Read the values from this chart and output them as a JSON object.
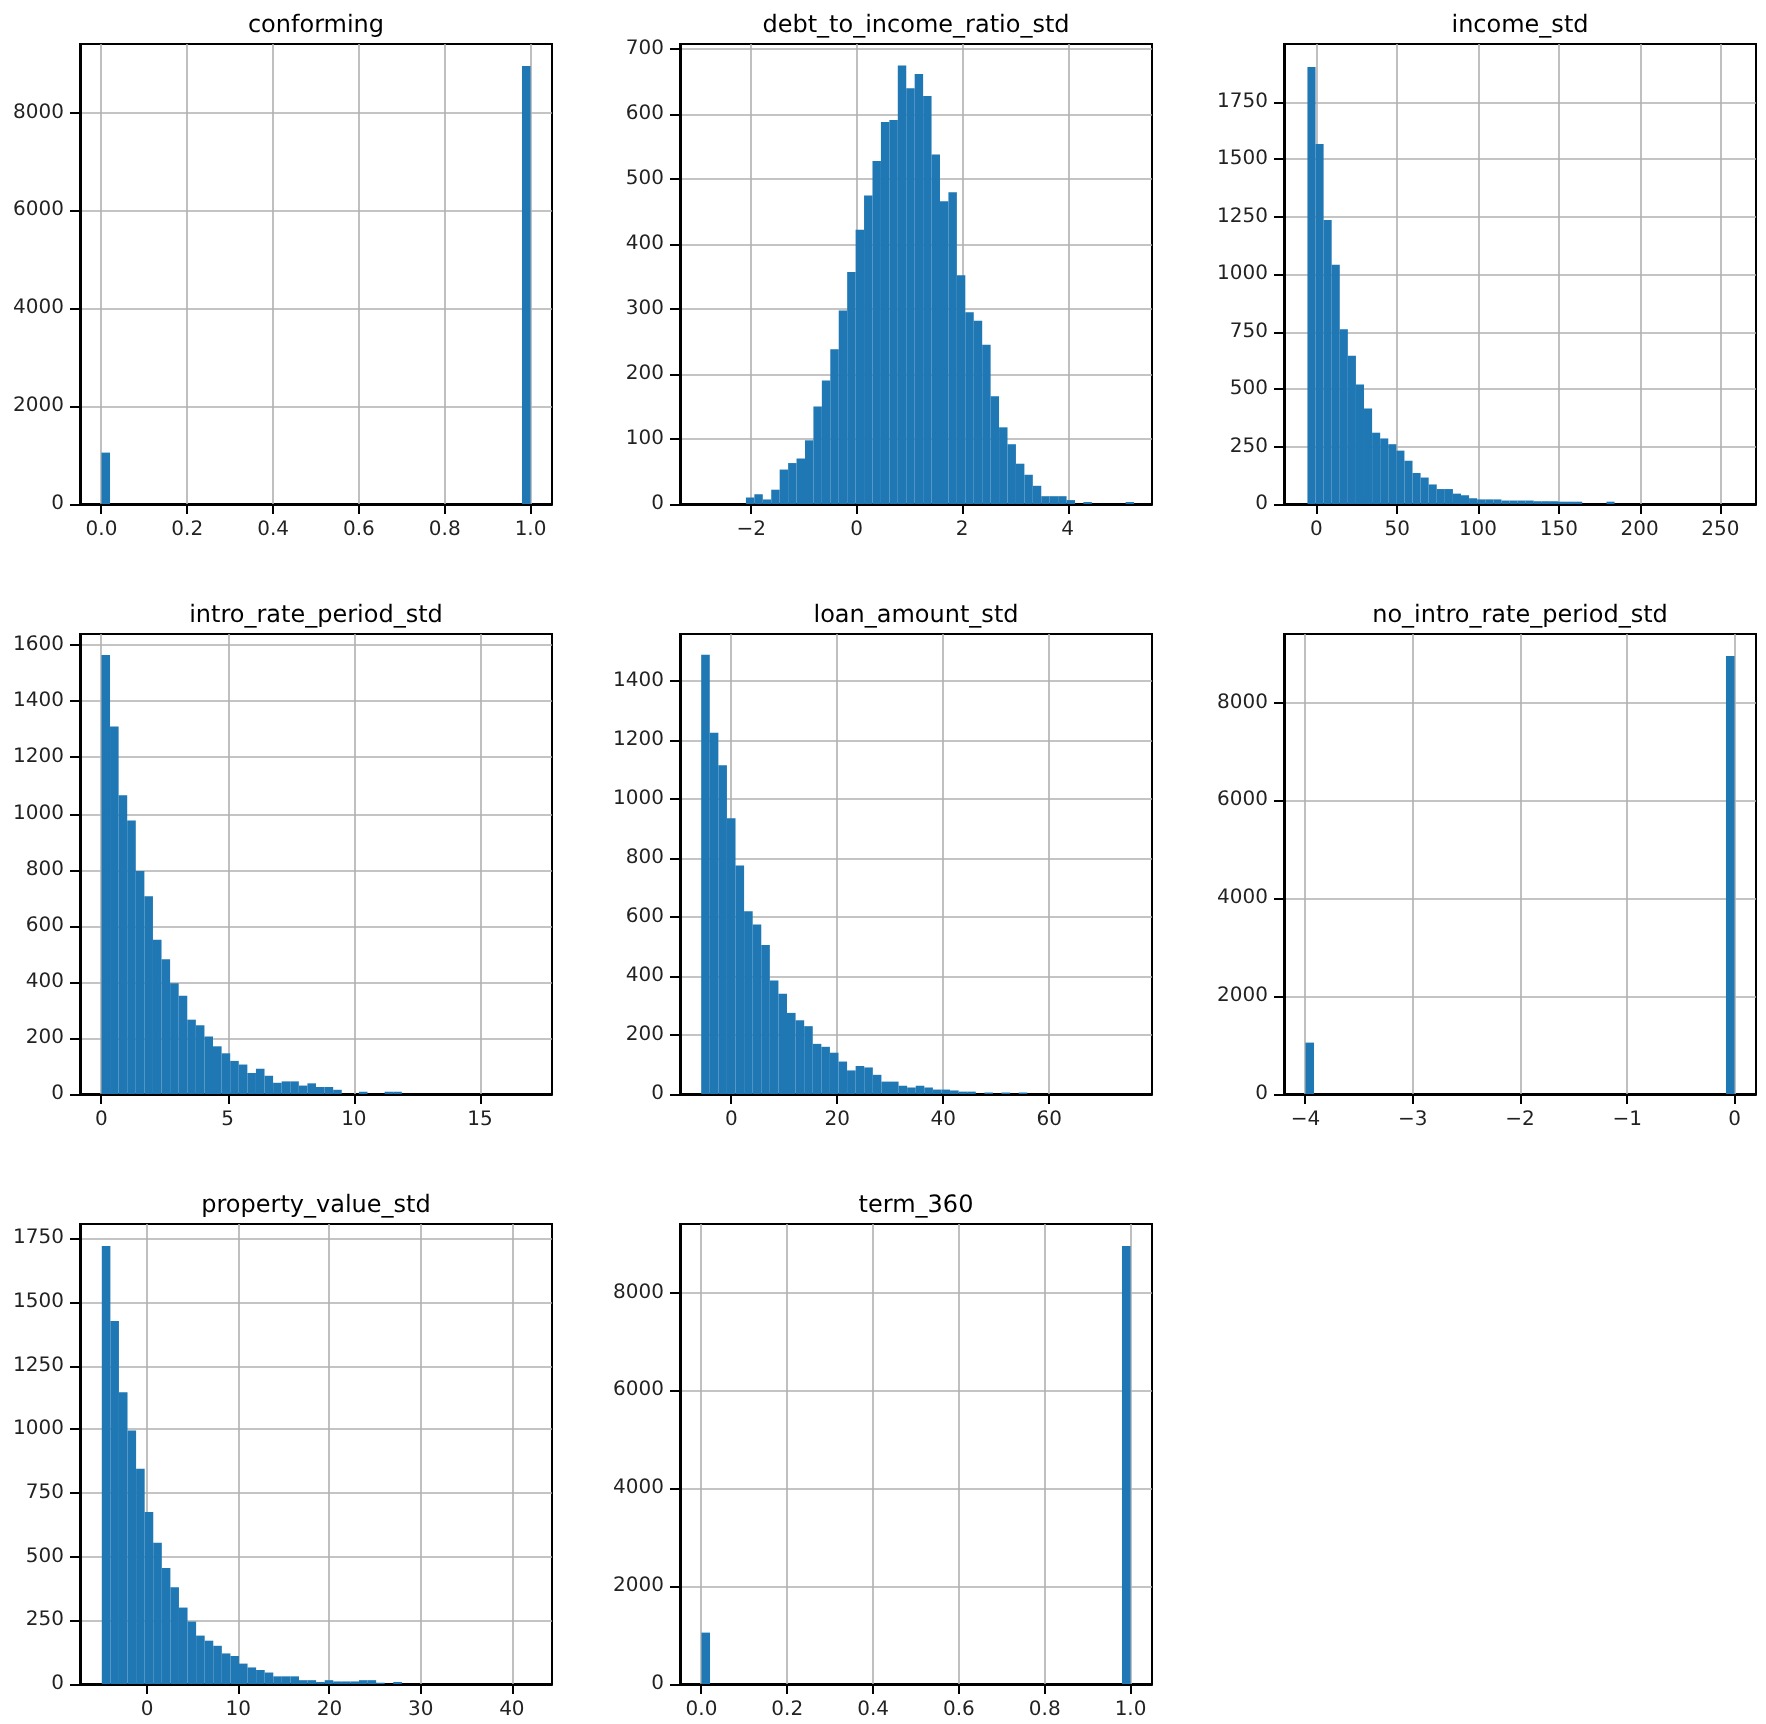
{
  "chart_data": [
    {
      "type": "histogram",
      "title": "conforming",
      "color": "#1f77b4",
      "grid": true,
      "bins": [
        0,
        0.02,
        0.98,
        1.0
      ],
      "values": [
        1050,
        0,
        8950
      ],
      "xlim": [
        -0.05,
        1.05
      ],
      "xticks": [
        {
          "value": 0,
          "label": "0.0"
        },
        {
          "value": 0.2,
          "label": "0.2"
        },
        {
          "value": 0.4,
          "label": "0.4"
        },
        {
          "value": 0.6,
          "label": "0.6"
        },
        {
          "value": 0.8,
          "label": "0.8"
        },
        {
          "value": 1,
          "label": "1.0"
        }
      ],
      "ylim": [
        0,
        9400
      ],
      "yticks": [
        0,
        2000,
        4000,
        6000,
        8000
      ]
    },
    {
      "type": "histogram",
      "title": "debt_to_income_ratio_std",
      "color": "#1f77b4",
      "grid": true,
      "bins": [
        -2.1,
        -1.94,
        -1.78,
        -1.62,
        -1.46,
        -1.3,
        -1.14,
        -0.98,
        -0.82,
        -0.66,
        -0.5,
        -0.34,
        -0.18,
        -0.02,
        0.14,
        0.3,
        0.46,
        0.62,
        0.78,
        0.94,
        1.1,
        1.26,
        1.42,
        1.58,
        1.74,
        1.9,
        2.06,
        2.22,
        2.38,
        2.54,
        2.7,
        2.86,
        3.02,
        3.18,
        3.34,
        3.5,
        3.66,
        3.82,
        3.98,
        4.14,
        4.3,
        4.46,
        4.62,
        4.78,
        4.94,
        5.1,
        5.26
      ],
      "values": [
        10,
        15,
        7,
        22,
        53,
        63,
        70,
        98,
        150,
        190,
        238,
        298,
        357,
        422,
        475,
        528,
        588,
        591,
        675,
        640,
        662,
        628,
        538,
        466,
        480,
        352,
        295,
        282,
        245,
        166,
        118,
        92,
        62,
        45,
        28,
        12,
        12,
        12,
        6,
        0,
        3,
        0,
        0,
        0,
        0,
        3
      ],
      "xlim": [
        -3.35,
        5.6
      ],
      "xticks": [
        {
          "value": -2,
          "label": "−2"
        },
        0,
        2,
        4
      ],
      "ylim": [
        0,
        708
      ],
      "yticks": [
        0,
        100,
        200,
        300,
        400,
        500,
        600,
        700
      ]
    },
    {
      "type": "histogram",
      "title": "income_std",
      "color": "#1f77b4",
      "grid": true,
      "bins": [
        -5.5,
        -0.5,
        4.5,
        9.5,
        14.5,
        19.5,
        24.5,
        29.5,
        34.5,
        39.5,
        44.5,
        49.5,
        54.5,
        59.5,
        64.5,
        69.5,
        74.5,
        79.5,
        84.5,
        89.5,
        94.5,
        99.5,
        104.5,
        109.5,
        114.5,
        119.5,
        124.5,
        129.5,
        134.5,
        139.5,
        144.5,
        149.5,
        154.5,
        159.5,
        164.5,
        169.5,
        174.5,
        179.5,
        184.5
      ],
      "values": [
        1900,
        1565,
        1235,
        1040,
        760,
        645,
        520,
        415,
        310,
        285,
        260,
        232,
        188,
        135,
        115,
        85,
        65,
        65,
        45,
        38,
        25,
        20,
        20,
        20,
        15,
        15,
        15,
        15,
        12,
        12,
        12,
        10,
        10,
        10,
        0,
        0,
        0,
        10
      ],
      "xlim": [
        -20,
        272
      ],
      "xticks": [
        0,
        50,
        100,
        150,
        200,
        250
      ],
      "ylim": [
        0,
        2000
      ],
      "yticks": [
        0,
        250,
        500,
        750,
        1000,
        1250,
        1500,
        1750
      ]
    },
    {
      "type": "histogram",
      "title": "intro_rate_period_std",
      "color": "#1f77b4",
      "grid": true,
      "bins": [
        0,
        0.34,
        0.68,
        1.02,
        1.36,
        1.7,
        2.04,
        2.38,
        2.72,
        3.06,
        3.4,
        3.74,
        4.08,
        4.42,
        4.76,
        5.1,
        5.44,
        5.78,
        6.12,
        6.46,
        6.8,
        7.14,
        7.48,
        7.82,
        8.16,
        8.5,
        8.84,
        9.18,
        9.52,
        9.86,
        10.2,
        10.54,
        10.88,
        11.22,
        11.56,
        11.9
      ],
      "values": [
        1565,
        1310,
        1065,
        975,
        795,
        705,
        550,
        480,
        395,
        350,
        265,
        245,
        205,
        170,
        145,
        118,
        105,
        75,
        90,
        65,
        40,
        45,
        45,
        30,
        38,
        25,
        25,
        15,
        0,
        0,
        8,
        0,
        0,
        8,
        8
      ],
      "xlim": [
        -0.85,
        17.85
      ],
      "xticks": [
        0,
        5,
        10,
        15
      ],
      "ylim": [
        0,
        1640
      ],
      "yticks": [
        0,
        200,
        400,
        600,
        800,
        1000,
        1200,
        1400,
        1600
      ]
    },
    {
      "type": "histogram",
      "title": "loan_amount_std",
      "color": "#1f77b4",
      "grid": true,
      "bins": [
        -5.7,
        -4.08,
        -2.46,
        -0.84,
        0.78,
        2.4,
        4.02,
        5.64,
        7.26,
        8.88,
        10.5,
        12.12,
        13.74,
        15.36,
        16.98,
        18.6,
        20.22,
        21.84,
        23.46,
        25.08,
        26.7,
        28.32,
        29.94,
        31.56,
        33.18,
        34.8,
        36.42,
        38.04,
        39.66,
        41.28,
        42.9,
        44.52,
        46.14,
        47.76,
        49.38,
        51.0,
        52.62,
        54.24,
        55.86
      ],
      "values": [
        1490,
        1225,
        1115,
        935,
        775,
        620,
        575,
        505,
        385,
        340,
        275,
        250,
        230,
        170,
        160,
        140,
        110,
        80,
        95,
        90,
        65,
        42,
        42,
        28,
        22,
        28,
        22,
        15,
        15,
        12,
        8,
        8,
        0,
        5,
        0,
        5,
        0,
        5
      ],
      "xlim": [
        -9.7,
        79.4
      ],
      "xticks": [
        0,
        20,
        40,
        60
      ],
      "ylim": [
        0,
        1560
      ],
      "yticks": [
        0,
        200,
        400,
        600,
        800,
        1000,
        1200,
        1400
      ]
    },
    {
      "type": "histogram",
      "title": "no_intro_rate_period_std",
      "color": "#1f77b4",
      "grid": true,
      "bins": [
        -4,
        -3.92,
        -0.08,
        0
      ],
      "values": [
        1050,
        0,
        8950
      ],
      "xlim": [
        -4.2,
        0.2
      ],
      "xticks": [
        {
          "value": -4,
          "label": "−4"
        },
        {
          "value": -3,
          "label": "−3"
        },
        {
          "value": -2,
          "label": "−2"
        },
        {
          "value": -1,
          "label": "−1"
        },
        0
      ],
      "ylim": [
        0,
        9400
      ],
      "yticks": [
        0,
        2000,
        4000,
        6000,
        8000
      ]
    },
    {
      "type": "histogram",
      "title": "property_value_std",
      "color": "#1f77b4",
      "grid": true,
      "bins": [
        -4.96,
        -4.02,
        -3.08,
        -2.14,
        -1.2,
        -0.26,
        0.68,
        1.62,
        2.56,
        3.5,
        4.44,
        5.38,
        6.32,
        7.26,
        8.2,
        9.14,
        10.08,
        11.02,
        11.96,
        12.9,
        13.84,
        14.78,
        15.72,
        16.66,
        17.6,
        18.54,
        19.48,
        20.42,
        21.36,
        22.3,
        23.24,
        24.18,
        25.12,
        26.06,
        27.0,
        27.94
      ],
      "values": [
        1720,
        1425,
        1145,
        995,
        845,
        675,
        555,
        455,
        380,
        300,
        245,
        190,
        170,
        150,
        120,
        110,
        80,
        65,
        55,
        45,
        30,
        30,
        30,
        15,
        15,
        8,
        15,
        10,
        10,
        10,
        15,
        15,
        5,
        0,
        8
      ],
      "xlim": [
        -7.35,
        44.4
      ],
      "xticks": [
        0,
        10,
        20,
        30,
        40
      ],
      "ylim": [
        0,
        1806
      ],
      "yticks": [
        0,
        250,
        500,
        750,
        1000,
        1250,
        1500,
        1750
      ]
    },
    {
      "type": "histogram",
      "title": "term_360",
      "color": "#1f77b4",
      "grid": true,
      "bins": [
        0,
        0.02,
        0.98,
        1.0
      ],
      "values": [
        1050,
        0,
        8950
      ],
      "xlim": [
        -0.05,
        1.05
      ],
      "xticks": [
        {
          "value": 0,
          "label": "0.0"
        },
        {
          "value": 0.2,
          "label": "0.2"
        },
        {
          "value": 0.4,
          "label": "0.4"
        },
        {
          "value": 0.6,
          "label": "0.6"
        },
        {
          "value": 0.8,
          "label": "0.8"
        },
        {
          "value": 1,
          "label": "1.0"
        }
      ],
      "ylim": [
        0,
        9400
      ],
      "yticks": [
        0,
        2000,
        4000,
        6000,
        8000
      ]
    }
  ]
}
